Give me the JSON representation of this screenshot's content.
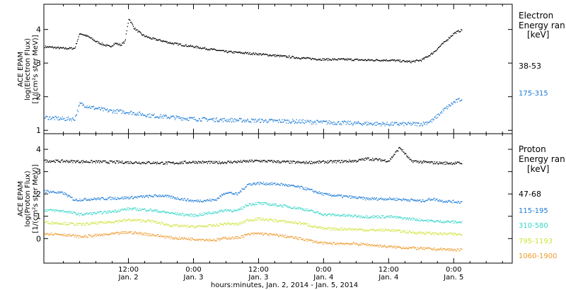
{
  "x_axis": {
    "title": "hours:minutes, Jan.  2, 2014 - Jan.  5, 2014",
    "ticks": [
      {
        "time": "12:00",
        "date": "Jan. 2",
        "hours": 12
      },
      {
        "time": "0:00",
        "date": "Jan. 3",
        "hours": 24
      },
      {
        "time": "12:00",
        "date": "Jan. 3",
        "hours": 36
      },
      {
        "time": "0:00",
        "date": "Jan. 4",
        "hours": 48
      },
      {
        "time": "12:00",
        "date": "Jan. 4",
        "hours": 60
      },
      {
        "time": "0:00",
        "date": "Jan. 5",
        "hours": 72
      }
    ]
  },
  "chart_data": [
    {
      "type": "scatter",
      "panel": "electron",
      "ylabel": [
        "ACE EPAM",
        "log(Electron Flux)",
        "[1/(cm²s ster MeV)]"
      ],
      "ylim": [
        0.9,
        4.75
      ],
      "yticks": [
        1,
        2,
        3,
        4
      ],
      "xlim_hours": [
        -3.6,
        82.8
      ],
      "legend_title": [
        "Electron",
        "Energy ran",
        "[keV]"
      ],
      "series": [
        {
          "name": "38-53",
          "color": "#000000",
          "x": [
            -3.6,
            0,
            2,
            3,
            4.5,
            6,
            7.5,
            8.5,
            9.5,
            10.5,
            11.3,
            12,
            13,
            14.5,
            16,
            18,
            20,
            24,
            30,
            36,
            40,
            44,
            48,
            52,
            56,
            60,
            64,
            66,
            68,
            70,
            72,
            73.5
          ],
          "y": [
            3.5,
            3.45,
            3.45,
            3.9,
            3.8,
            3.65,
            3.55,
            3.5,
            3.6,
            3.55,
            3.65,
            4.35,
            4.05,
            3.85,
            3.75,
            3.68,
            3.6,
            3.5,
            3.35,
            3.28,
            3.22,
            3.16,
            3.12,
            3.12,
            3.1,
            3.1,
            3.05,
            3.1,
            3.3,
            3.6,
            3.9,
            4.0
          ]
        },
        {
          "name": "175-315",
          "color": "#1c7bd6",
          "x": [
            -3.6,
            0,
            2,
            3,
            5,
            8,
            12,
            16,
            20,
            24,
            30,
            36,
            42,
            48,
            54,
            60,
            66,
            68,
            70,
            72,
            73.5
          ],
          "y": [
            1.4,
            1.35,
            1.35,
            1.8,
            1.7,
            1.6,
            1.55,
            1.45,
            1.4,
            1.35,
            1.32,
            1.3,
            1.28,
            1.25,
            1.22,
            1.2,
            1.2,
            1.3,
            1.6,
            1.85,
            1.95
          ]
        }
      ]
    },
    {
      "type": "scatter",
      "panel": "proton",
      "ylabel": [
        "ACE EPAM",
        "log(Proton Flux)",
        "[1/(cm²s ster MeV)]"
      ],
      "ylim": [
        -1.1,
        4.7
      ],
      "yticks": [
        0,
        1,
        2,
        3,
        4
      ],
      "xlim_hours": [
        -3.6,
        82.8
      ],
      "legend_title": [
        "Proton",
        "Energy ran",
        "[keV]"
      ],
      "series": [
        {
          "name": "47-68",
          "color": "#000000",
          "x": [
            -3.6,
            8,
            20,
            24,
            28,
            36,
            44,
            48,
            54,
            56,
            60,
            62,
            64,
            66,
            68,
            70,
            73.5
          ],
          "y": [
            3.5,
            3.45,
            3.4,
            3.45,
            3.42,
            3.5,
            3.42,
            3.45,
            3.5,
            3.6,
            3.5,
            4.1,
            3.5,
            3.45,
            3.42,
            3.4,
            3.4
          ]
        },
        {
          "name": "115-195",
          "color": "#1c7bd6",
          "x": [
            -3.6,
            0,
            2,
            6,
            12,
            18,
            24,
            28,
            30,
            32,
            34,
            36,
            40,
            44,
            48,
            52,
            56,
            60,
            64,
            66,
            68,
            70,
            73.5
          ],
          "y": [
            2.15,
            2.05,
            1.75,
            1.8,
            1.85,
            1.95,
            1.7,
            1.75,
            2.1,
            2.0,
            2.45,
            2.5,
            2.45,
            2.3,
            2.0,
            1.9,
            1.8,
            1.8,
            1.75,
            1.7,
            1.8,
            1.7,
            1.65
          ]
        },
        {
          "name": "310-580",
          "color": "#33d6c8",
          "x": [
            -3.6,
            0,
            3,
            8,
            12,
            16,
            20,
            24,
            28,
            30,
            32,
            34,
            36,
            40,
            44,
            48,
            52,
            56,
            60,
            64,
            68,
            73.5
          ],
          "y": [
            1.3,
            1.25,
            1.1,
            1.2,
            1.35,
            1.3,
            1.15,
            1.05,
            1.2,
            1.3,
            1.25,
            1.55,
            1.6,
            1.5,
            1.35,
            1.1,
            1.05,
            1.0,
            1.0,
            0.9,
            0.8,
            0.75
          ]
        },
        {
          "name": "795-1193",
          "color": "#cfe33a",
          "x": [
            -3.6,
            0,
            3,
            8,
            12,
            16,
            20,
            24,
            28,
            30,
            32,
            34,
            36,
            40,
            44,
            48,
            52,
            56,
            60,
            64,
            68,
            73.5
          ],
          "y": [
            0.75,
            0.7,
            0.65,
            0.75,
            0.85,
            0.8,
            0.6,
            0.55,
            0.6,
            0.7,
            0.65,
            0.85,
            0.9,
            0.8,
            0.7,
            0.45,
            0.45,
            0.4,
            0.4,
            0.3,
            0.25,
            0.2
          ]
        },
        {
          "name": "1060-1900",
          "color": "#ee9a2c",
          "x": [
            -3.6,
            0,
            3,
            8,
            12,
            16,
            20,
            24,
            28,
            30,
            32,
            34,
            36,
            40,
            44,
            48,
            52,
            56,
            60,
            64,
            68,
            73.5
          ],
          "y": [
            0.25,
            0.2,
            0.1,
            0.2,
            0.3,
            0.2,
            0.05,
            0.0,
            -0.05,
            0.05,
            0.05,
            0.2,
            0.25,
            0.15,
            0.0,
            -0.2,
            -0.2,
            -0.25,
            -0.35,
            -0.4,
            -0.45,
            -0.5
          ]
        }
      ]
    }
  ]
}
